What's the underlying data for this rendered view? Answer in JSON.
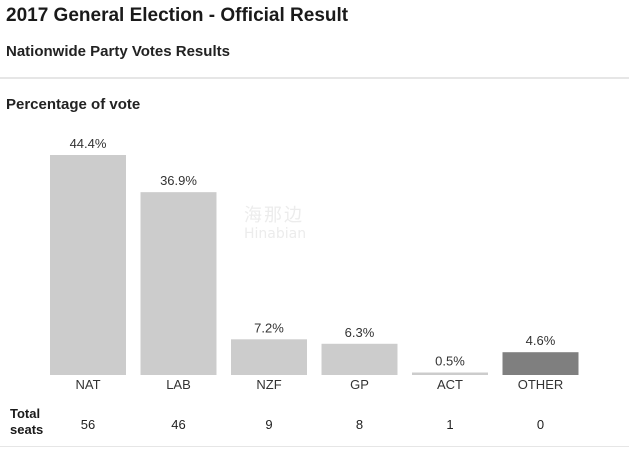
{
  "header": {
    "title": "2017 General Election - Official Result",
    "subtitle": "Nationwide Party Votes Results"
  },
  "section": {
    "title": "Percentage of vote"
  },
  "watermark": {
    "line1": "海那边",
    "line2": "Hinabian"
  },
  "seats": {
    "label": "Total seats"
  },
  "colors": {
    "bar": "#cccccc",
    "bar_other": "#7f7f7f"
  },
  "chart_data": {
    "type": "bar",
    "title": "Percentage of vote",
    "categories": [
      "NAT",
      "LAB",
      "NZF",
      "GP",
      "ACT",
      "OTHER"
    ],
    "values": [
      44.4,
      36.9,
      7.2,
      6.3,
      0.5,
      4.6
    ],
    "value_labels": [
      "44.4%",
      "36.9%",
      "7.2%",
      "6.3%",
      "0.5%",
      "4.6%"
    ],
    "ylim": [
      0,
      44.4
    ],
    "grid": false,
    "seat_row_label": "Total seats",
    "seats": [
      56,
      46,
      9,
      8,
      1,
      0
    ]
  }
}
